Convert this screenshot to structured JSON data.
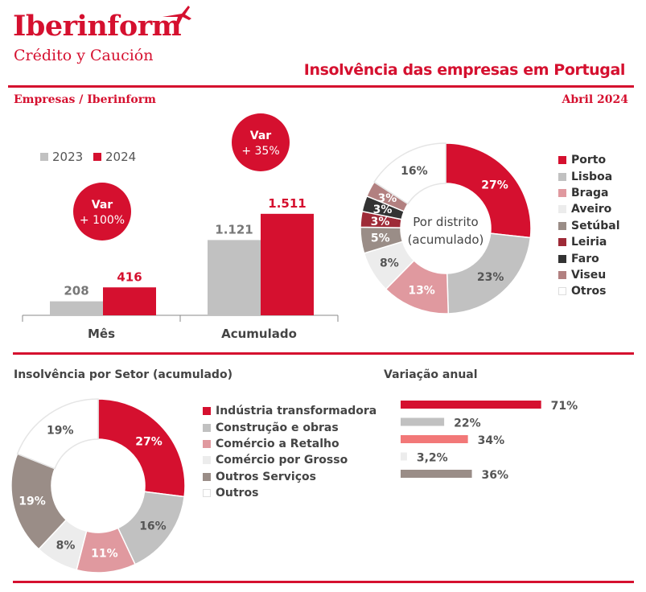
{
  "brand": {
    "name": "Iberinform",
    "tagline": "Crédito y Caución"
  },
  "header": {
    "title": "Insolvência das empresas em Portugal",
    "source": "Empresas / Iberinform",
    "date": "Abril 2024"
  },
  "colors": {
    "accent": "#d5102f",
    "grey": "#c1c1c1"
  },
  "icons": {
    "logo": "plane-arrow-icon"
  },
  "bubbles": {
    "month": "Var\n+ 100%",
    "accumulated": "Var\n+ 35%"
  },
  "chart_data": [
    {
      "type": "bar",
      "categories": [
        "Mês",
        "Acumulado"
      ],
      "series": [
        {
          "name": "2023",
          "values": [
            208,
            1121
          ],
          "labels": [
            "208",
            "1.121"
          ],
          "color": "#c1c1c1"
        },
        {
          "name": "2024",
          "values": [
            416,
            1511
          ],
          "labels": [
            "416",
            "1.511"
          ],
          "color": "#d5102f"
        }
      ],
      "annotations": [
        "Var\n+ 100%",
        "Var\n+ 35%"
      ],
      "legend": "top-left",
      "ylim": [
        0,
        1600
      ]
    },
    {
      "type": "pie",
      "center_label": "Por distrito\n(acumulado)",
      "slices": [
        {
          "label": "Porto",
          "value": 27,
          "text": "27%",
          "color": "#d5102f"
        },
        {
          "label": "Lisboa",
          "value": 23,
          "text": "23%",
          "color": "#c1c1c1"
        },
        {
          "label": "Braga",
          "value": 13,
          "text": "13%",
          "color": "#e0999f"
        },
        {
          "label": "Aveiro",
          "value": 8,
          "text": "8%",
          "color": "#ececec"
        },
        {
          "label": "Setúbal",
          "value": 5,
          "text": "5%",
          "color": "#9a8d87"
        },
        {
          "label": "Leiria",
          "value": 3,
          "text": "3%",
          "color": "#9e2a37"
        },
        {
          "label": "Faro",
          "value": 3,
          "text": "3%",
          "color": "#333333"
        },
        {
          "label": "Viseu",
          "value": 3,
          "text": "3%",
          "color": "#b28080"
        },
        {
          "label": "Otros",
          "value": 16,
          "text": "16%",
          "color": "#ffffff"
        }
      ],
      "legend": "right"
    },
    {
      "type": "pie",
      "title": "Insolvência por Setor (acumulado)",
      "slices": [
        {
          "label": "Indústria transformadora",
          "value": 27,
          "text": "27%",
          "color": "#d5102f"
        },
        {
          "label": "Construção e obras",
          "value": 16,
          "text": "16%",
          "color": "#c1c1c1"
        },
        {
          "label": "Comércio a Retalho",
          "value": 11,
          "text": "11%",
          "color": "#e0999f"
        },
        {
          "label": "Comércio por Grosso",
          "value": 8,
          "text": "8%",
          "color": "#ececec"
        },
        {
          "label": "Outros Serviços",
          "value": 19,
          "text": "19%",
          "color": "#9a8d87"
        },
        {
          "label": "Outros",
          "value": 19,
          "text": "19%",
          "color": "#ffffff"
        }
      ],
      "legend": "right"
    },
    {
      "type": "bar",
      "orientation": "horizontal",
      "title": "Variação anual",
      "values": [
        71,
        22,
        34,
        3.2,
        36
      ],
      "labels": [
        "71%",
        "22%",
        "34%",
        "3,2%",
        "36%"
      ],
      "colors": [
        "#d5102f",
        "#c1c1c1",
        "#f27878",
        "#ececec",
        "#9a8d87"
      ]
    }
  ]
}
